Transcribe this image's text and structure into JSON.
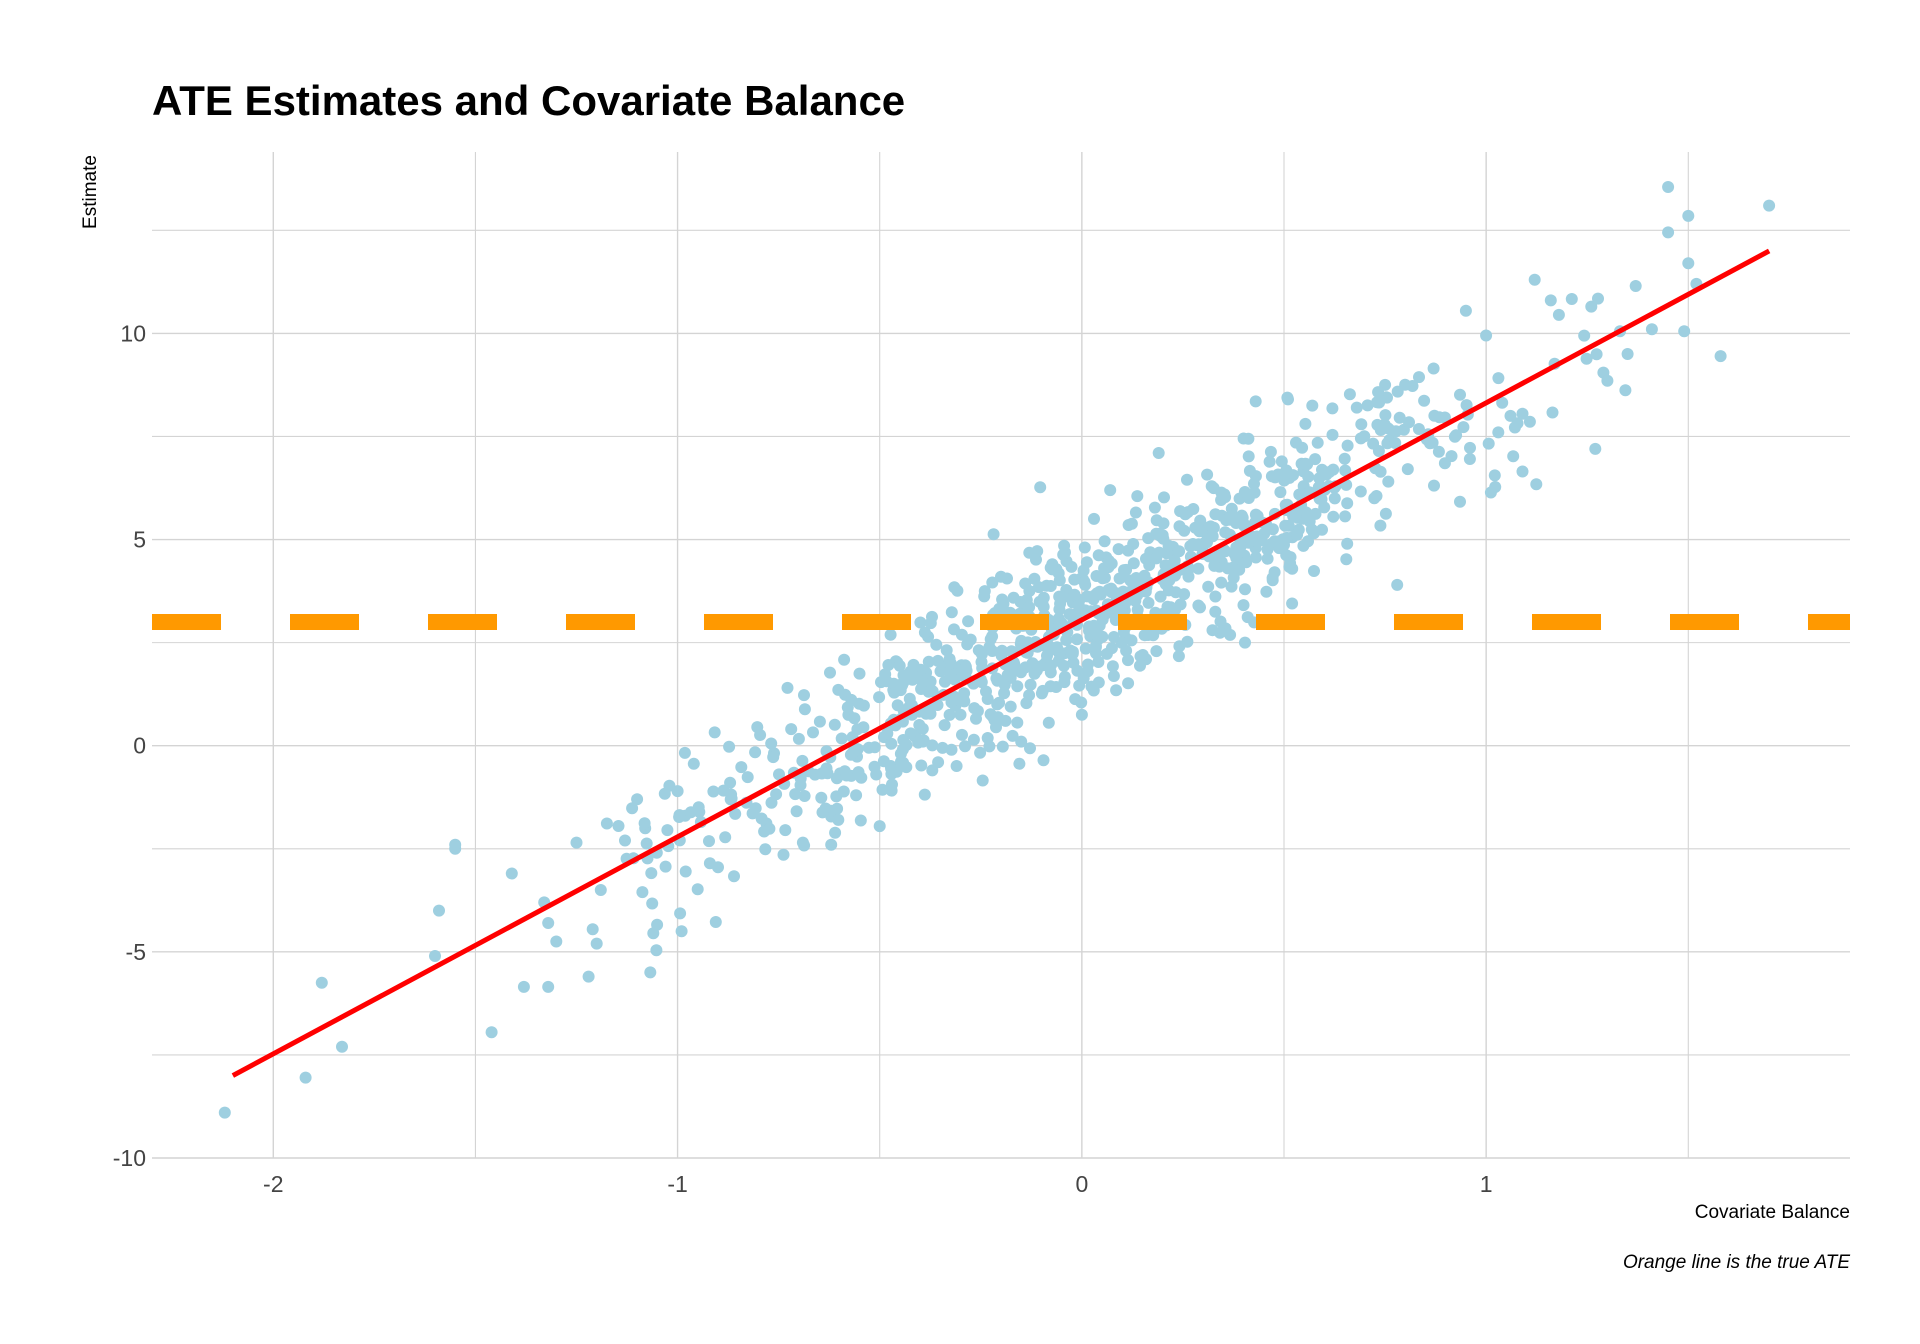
{
  "chart_data": {
    "type": "scatter",
    "title": "ATE Estimates and Covariate Balance",
    "xlabel": "Covariate Balance",
    "ylabel": "Estimate",
    "caption": "Orange line is the true ATE",
    "xlim": [
      -2.3,
      1.9
    ],
    "ylim": [
      -10,
      14.4
    ],
    "x_ticks": [
      -2,
      -1,
      0,
      1
    ],
    "y_ticks": [
      -10,
      -5,
      0,
      5,
      10
    ],
    "grid": true,
    "point_count": 1000,
    "regression_line": {
      "x_start": -2.1,
      "x_end": 1.7,
      "y_start": -8.0,
      "y_end": 12.0,
      "color": "#ff0000"
    },
    "reference_line": {
      "y": 3.0,
      "style": "dashed",
      "color": "#ff9900"
    },
    "point_color": "#9ecfe0",
    "grid_color": "#d4d4d4",
    "points": [
      [
        -2.12,
        -8.9
      ],
      [
        -1.92,
        -8.05
      ],
      [
        -1.88,
        -5.75
      ],
      [
        -1.83,
        -7.3
      ],
      [
        -1.59,
        -4.0
      ],
      [
        -1.6,
        -5.1
      ],
      [
        -1.55,
        -2.5
      ],
      [
        -1.55,
        -2.4
      ],
      [
        -1.46,
        -6.95
      ],
      [
        -1.41,
        -3.1
      ],
      [
        -1.38,
        -5.85
      ],
      [
        -1.33,
        -3.8
      ],
      [
        -1.32,
        -4.3
      ],
      [
        -1.3,
        -4.75
      ],
      [
        -1.32,
        -5.85
      ],
      [
        -1.25,
        -2.35
      ],
      [
        -1.22,
        -5.6
      ],
      [
        -1.21,
        -4.45
      ],
      [
        -1.2,
        -4.8
      ],
      [
        -1.19,
        -3.5
      ],
      [
        -1.06,
        -4.55
      ],
      [
        -0.99,
        -4.5
      ],
      [
        -0.92,
        -2.85
      ],
      [
        -0.87,
        -0.9
      ],
      [
        -0.66,
        -0.7
      ],
      [
        -0.55,
        1.75
      ],
      [
        -0.46,
        2.05
      ],
      [
        -0.36,
        2.45
      ],
      [
        -0.24,
        3.75
      ],
      [
        -0.2,
        4.1
      ],
      [
        0.03,
        5.5
      ],
      [
        0.07,
        6.2
      ],
      [
        0.19,
        7.1
      ],
      [
        0.26,
        6.45
      ],
      [
        0.4,
        7.45
      ],
      [
        0.43,
        8.35
      ],
      [
        0.51,
        8.4
      ],
      [
        0.57,
        8.25
      ],
      [
        0.68,
        8.2
      ],
      [
        0.75,
        8.75
      ],
      [
        0.87,
        9.15
      ],
      [
        0.95,
        10.55
      ],
      [
        1.0,
        9.95
      ],
      [
        1.03,
        7.6
      ],
      [
        1.09,
        8.05
      ],
      [
        1.12,
        11.3
      ],
      [
        1.16,
        10.8
      ],
      [
        1.18,
        10.45
      ],
      [
        1.26,
        10.65
      ],
      [
        1.29,
        9.05
      ],
      [
        1.3,
        8.85
      ],
      [
        1.35,
        9.5
      ],
      [
        1.37,
        11.15
      ],
      [
        1.41,
        10.1
      ],
      [
        1.45,
        12.45
      ],
      [
        1.45,
        13.55
      ],
      [
        1.49,
        10.05
      ],
      [
        1.5,
        11.7
      ],
      [
        1.5,
        12.85
      ],
      [
        1.52,
        11.2
      ],
      [
        1.58,
        9.45
      ],
      [
        1.7,
        13.1
      ],
      [
        1.27,
        7.2
      ],
      [
        1.09,
        6.65
      ],
      [
        0.78,
        3.9
      ],
      [
        0.52,
        3.45
      ],
      [
        0.33,
        3.25
      ],
      [
        0.0,
        0.75
      ],
      [
        -0.15,
        0.1
      ],
      [
        -0.37,
        -0.6
      ],
      [
        -0.5,
        -1.95
      ],
      [
        -0.62,
        -2.4
      ],
      [
        -0.69,
        -2.35
      ],
      [
        -0.9,
        -2.95
      ],
      [
        -0.98,
        -3.05
      ],
      [
        -1.13,
        -2.3
      ],
      [
        -1.08,
        -2.0
      ],
      [
        -1.1,
        -1.3
      ],
      [
        -1.0,
        -1.1
      ]
    ]
  }
}
